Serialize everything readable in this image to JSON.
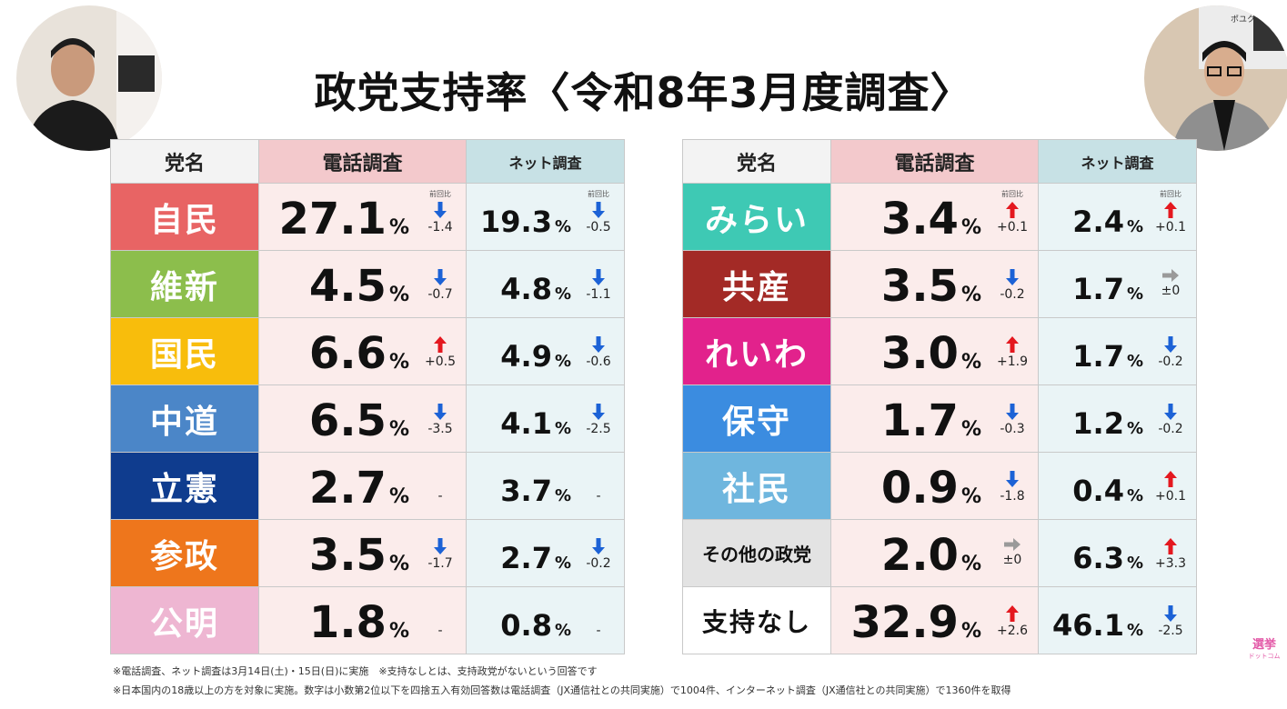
{
  "title": "政党支持率〈令和8年3月度調査〉",
  "headers": {
    "party": "党名",
    "phone": "電話調査",
    "net": "ネット調査"
  },
  "zenkai_label": "前回比",
  "unit": "%",
  "colors": {
    "phone_header": "#f3c9cc",
    "net_header": "#c7e1e5",
    "arrow_up": "#e4181f",
    "arrow_down": "#1c62d6",
    "arrow_flat": "#9a9a9a"
  },
  "left_rows": [
    {
      "party": "自民",
      "color": "#e86464",
      "phone": "27.1",
      "phone_delta": "-1.4",
      "phone_dir": "down",
      "net": "19.3",
      "net_delta": "-0.5",
      "net_dir": "down"
    },
    {
      "party": "維新",
      "color": "#8cbe4c",
      "phone": "4.5",
      "phone_delta": "-0.7",
      "phone_dir": "down",
      "net": "4.8",
      "net_delta": "-1.1",
      "net_dir": "down"
    },
    {
      "party": "国民",
      "color": "#f8bd0c",
      "phone": "6.6",
      "phone_delta": "+0.5",
      "phone_dir": "up",
      "net": "4.9",
      "net_delta": "-0.6",
      "net_dir": "down"
    },
    {
      "party": "中道",
      "color": "#4b86c8",
      "phone": "6.5",
      "phone_delta": "-3.5",
      "phone_dir": "down",
      "net": "4.1",
      "net_delta": "-2.5",
      "net_dir": "down"
    },
    {
      "party": "立憲",
      "color": "#0f3c8e",
      "phone": "2.7",
      "phone_delta": "-",
      "phone_dir": "none",
      "net": "3.7",
      "net_delta": "-",
      "net_dir": "none"
    },
    {
      "party": "参政",
      "color": "#ee761c",
      "phone": "3.5",
      "phone_delta": "-1.7",
      "phone_dir": "down",
      "net": "2.7",
      "net_delta": "-0.2",
      "net_dir": "down"
    },
    {
      "party": "公明",
      "color": "#eeb6d2",
      "phone": "1.8",
      "phone_delta": "-",
      "phone_dir": "none",
      "net": "0.8",
      "net_delta": "-",
      "net_dir": "none"
    }
  ],
  "right_rows": [
    {
      "party": "みらい",
      "color": "#3ec9b4",
      "phone": "3.4",
      "phone_delta": "+0.1",
      "phone_dir": "up",
      "net": "2.4",
      "net_delta": "+0.1",
      "net_dir": "up"
    },
    {
      "party": "共産",
      "color": "#a32a26",
      "phone": "3.5",
      "phone_delta": "-0.2",
      "phone_dir": "down",
      "net": "1.7",
      "net_delta": "±0",
      "net_dir": "flat"
    },
    {
      "party": "れいわ",
      "color": "#e2228c",
      "phone": "3.0",
      "phone_delta": "+1.9",
      "phone_dir": "up",
      "net": "1.7",
      "net_delta": "-0.2",
      "net_dir": "down"
    },
    {
      "party": "保守",
      "color": "#3b8ce0",
      "phone": "1.7",
      "phone_delta": "-0.3",
      "phone_dir": "down",
      "net": "1.2",
      "net_delta": "-0.2",
      "net_dir": "down"
    },
    {
      "party": "社民",
      "color": "#6fb6de",
      "phone": "0.9",
      "phone_delta": "-1.8",
      "phone_dir": "down",
      "net": "0.4",
      "net_delta": "+0.1",
      "net_dir": "up"
    },
    {
      "party": "その他の政党",
      "color": "#e3e3e3",
      "phone": "2.0",
      "phone_delta": "±0",
      "phone_dir": "flat",
      "net": "6.3",
      "net_delta": "+3.3",
      "net_dir": "up"
    },
    {
      "party": "支持なし",
      "color": "#ffffff",
      "phone": "32.9",
      "phone_delta": "+2.6",
      "phone_dir": "up",
      "net": "46.1",
      "net_delta": "-2.5",
      "net_dir": "down"
    }
  ],
  "notes": [
    "※電話調査、ネット調査は3月14日(土)・15日(日)に実施　※支持なしとは、支持政党がないという回答です",
    "※日本国内の18歳以上の方を対象に実施。数字は小数第2位以下を四捨五入有効回答数は電話調査（JX通信社との共同実施）で1004件、インターネット調査（JX通信社との共同実施）で1360件を取得"
  ],
  "logos": {
    "top_right": "ポユクタ",
    "bottom_right": "選挙",
    "bottom_right_sub": "ドットコム"
  },
  "chart_data": {
    "type": "table",
    "title": "政党支持率〈令和8年3月度調査〉",
    "columns": [
      "党名",
      "電話調査",
      "電話調査 前回比",
      "ネット調査",
      "ネット調査 前回比"
    ],
    "unit": "%",
    "rows": [
      [
        "自民",
        27.1,
        "-1.4",
        19.3,
        "-0.5"
      ],
      [
        "維新",
        4.5,
        "-0.7",
        4.8,
        "-1.1"
      ],
      [
        "国民",
        6.6,
        "+0.5",
        4.9,
        "-0.6"
      ],
      [
        "中道",
        6.5,
        "-3.5",
        4.1,
        "-2.5"
      ],
      [
        "立憲",
        2.7,
        "-",
        3.7,
        "-"
      ],
      [
        "参政",
        3.5,
        "-1.7",
        2.7,
        "-0.2"
      ],
      [
        "公明",
        1.8,
        "-",
        0.8,
        "-"
      ],
      [
        "みらい",
        3.4,
        "+0.1",
        2.4,
        "+0.1"
      ],
      [
        "共産",
        3.5,
        "-0.2",
        1.7,
        "±0"
      ],
      [
        "れいわ",
        3.0,
        "+1.9",
        1.7,
        "-0.2"
      ],
      [
        "保守",
        1.7,
        "-0.3",
        1.2,
        "-0.2"
      ],
      [
        "社民",
        0.9,
        "-1.8",
        0.4,
        "+0.1"
      ],
      [
        "その他の政党",
        2.0,
        "±0",
        6.3,
        "+3.3"
      ],
      [
        "支持なし",
        32.9,
        "+2.6",
        46.1,
        "-2.5"
      ]
    ]
  }
}
